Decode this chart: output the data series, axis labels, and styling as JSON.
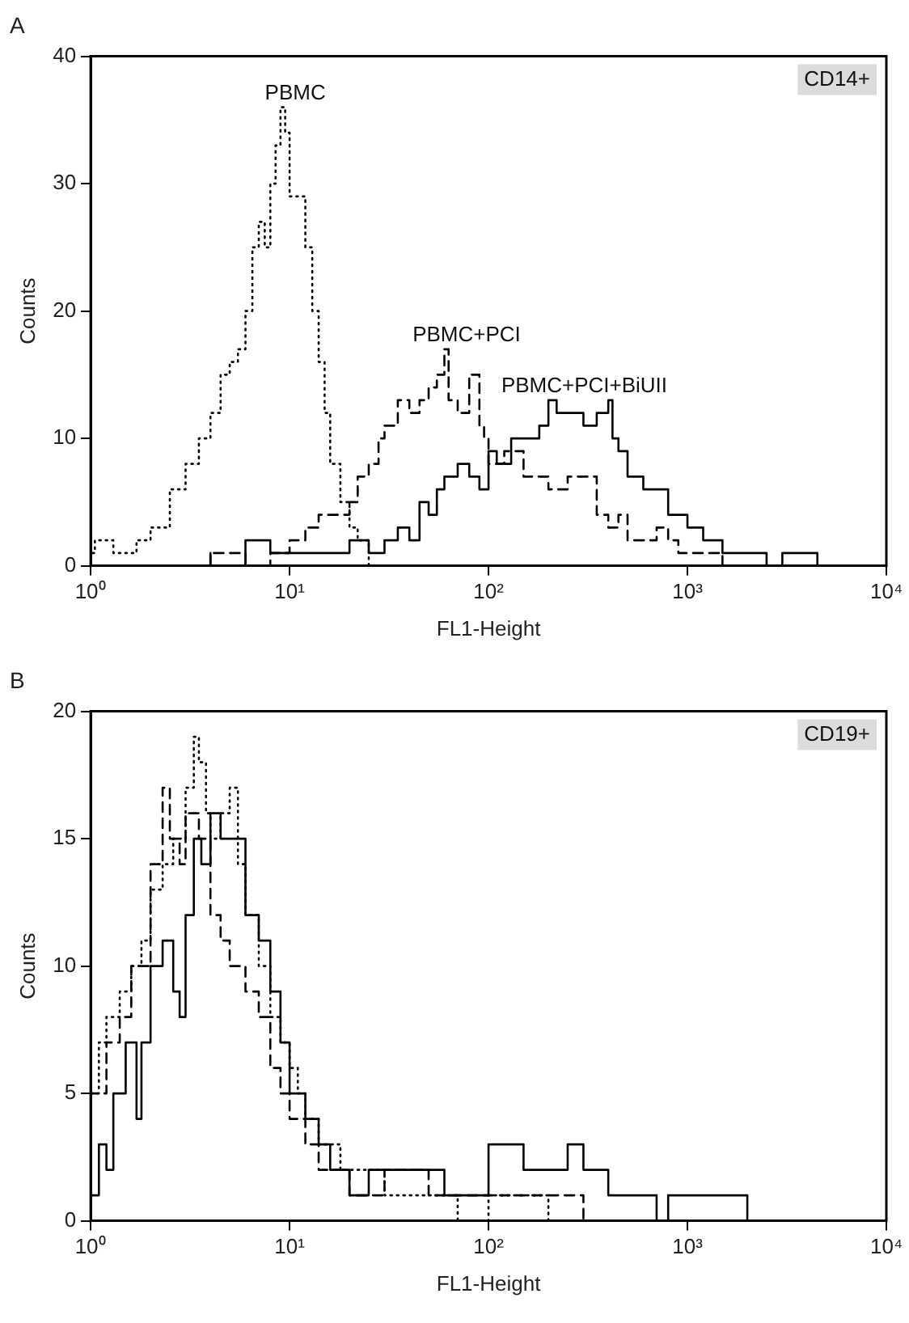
{
  "chart_data": [
    {
      "type": "step",
      "title": "A",
      "xlabel": "FL1-Height",
      "ylabel": "Counts",
      "annotations": [
        "CD14+"
      ],
      "log": "x",
      "grid": false,
      "legend": false,
      "marker": "none",
      "xlim": [
        1,
        10000
      ],
      "xticks": [
        {
          "value": 1,
          "label": "10⁰"
        },
        {
          "value": 10,
          "label": "10¹"
        },
        {
          "value": 100,
          "label": "10²"
        },
        {
          "value": 1000,
          "label": "10³"
        },
        {
          "value": 10000,
          "label": "10⁴"
        }
      ],
      "ylim": [
        0,
        40
      ],
      "yticks": [
        0,
        10,
        20,
        30,
        40
      ],
      "series": [
        {
          "name": "PBMC",
          "color": "#000000",
          "line_style": "dotted",
          "x": [
            1,
            1.05,
            1.3,
            1.5,
            1.7,
            2,
            2.5,
            3,
            3.5,
            4,
            4.5,
            5,
            5.5,
            6,
            6.5,
            7,
            7.5,
            8,
            8.5,
            9,
            9.5,
            10,
            11,
            12,
            13,
            14,
            15,
            16,
            18,
            20,
            22,
            25,
            28,
            100,
            1000,
            10000
          ],
          "values": [
            10,
            1,
            2,
            1,
            1,
            2,
            3,
            6,
            8,
            10,
            12,
            15,
            16,
            17,
            20,
            25,
            27,
            25,
            30,
            33,
            36,
            34,
            29,
            29,
            25,
            20,
            16,
            12,
            8,
            5,
            3,
            2,
            0,
            0,
            0,
            0
          ]
        },
        {
          "name": "PBMC+PCI",
          "color": "#000000",
          "line_style": "dashed",
          "x": [
            4,
            6,
            8,
            10,
            12,
            14,
            16,
            20,
            22,
            25,
            28,
            30,
            35,
            40,
            45,
            50,
            55,
            60,
            63,
            70,
            80,
            90,
            95,
            100,
            120,
            150,
            200,
            250,
            300,
            350,
            400,
            450,
            500,
            600,
            700,
            800,
            900,
            1000,
            1500,
            2000,
            10000
          ],
          "values": [
            0,
            1,
            0,
            1,
            2,
            3,
            4,
            4,
            5,
            7,
            8,
            10,
            11,
            13,
            12,
            13,
            14,
            15,
            17,
            13,
            12,
            15,
            11,
            10,
            8,
            9,
            7,
            6,
            7,
            7,
            4,
            3,
            4,
            2,
            2,
            3,
            2,
            1,
            1,
            0,
            0
          ]
        },
        {
          "name": "PBMC+PCI+BiUII",
          "color": "#000000",
          "line_style": "solid",
          "x": [
            4,
            6,
            8,
            10,
            15,
            20,
            25,
            30,
            35,
            40,
            45,
            50,
            55,
            60,
            70,
            80,
            90,
            100,
            110,
            130,
            150,
            180,
            200,
            220,
            250,
            300,
            350,
            400,
            420,
            450,
            500,
            600,
            700,
            800,
            900,
            1000,
            1200,
            1500,
            2000,
            2500,
            3000,
            4500,
            5000,
            10000
          ],
          "values": [
            1,
            0,
            2,
            1,
            1,
            1,
            2,
            1,
            2,
            3,
            2,
            5,
            4,
            6,
            7,
            8,
            7,
            6,
            9,
            8,
            10,
            10,
            11,
            13,
            12,
            12,
            11,
            12,
            13,
            10,
            9,
            7,
            6,
            6,
            4,
            4,
            3,
            2,
            1,
            1,
            0,
            1,
            0,
            0
          ]
        }
      ]
    },
    {
      "type": "step",
      "title": "B",
      "xlabel": "FL1-Height",
      "ylabel": "Counts",
      "annotations": [
        "CD19+"
      ],
      "log": "x",
      "grid": false,
      "legend": false,
      "marker": "none",
      "xlim": [
        1,
        10000
      ],
      "xticks": [
        {
          "value": 1,
          "label": "10⁰"
        },
        {
          "value": 10,
          "label": "10¹"
        },
        {
          "value": 100,
          "label": "10²"
        },
        {
          "value": 1000,
          "label": "10³"
        },
        {
          "value": 10000,
          "label": "10⁴"
        }
      ],
      "ylim": [
        0,
        20
      ],
      "yticks": [
        0,
        5,
        10,
        15,
        20
      ],
      "series": [
        {
          "color": "#000000",
          "line_style": "dotted",
          "x": [
            1,
            1.1,
            1.2,
            1.4,
            1.6,
            1.8,
            2,
            2.3,
            2.6,
            3,
            3.3,
            3.5,
            3.8,
            4,
            4.5,
            5,
            5.5,
            6,
            7,
            8,
            9,
            10,
            11,
            12,
            14,
            16,
            18,
            20,
            25,
            30,
            40,
            50,
            70,
            100,
            150,
            200,
            300,
            10000
          ],
          "values": [
            4,
            5,
            7,
            8,
            9,
            10,
            11,
            13,
            14,
            15,
            17,
            19,
            18,
            16,
            15,
            16,
            17,
            14,
            12,
            10,
            8,
            7,
            6,
            5,
            4,
            3,
            3,
            2,
            2,
            2,
            1,
            1,
            1,
            0,
            1,
            1,
            0,
            0
          ]
        },
        {
          "color": "#000000",
          "line_style": "dashed",
          "x": [
            1,
            1.2,
            1.4,
            1.6,
            2,
            2.3,
            2.5,
            2.8,
            3,
            3.5,
            4,
            4.5,
            5,
            6,
            7,
            8,
            9,
            10,
            12,
            14,
            16,
            20,
            30,
            50,
            70,
            100,
            150,
            200,
            300,
            400,
            10000
          ],
          "values": [
            3,
            5,
            7,
            8,
            10,
            14,
            17,
            15,
            14,
            16,
            15,
            12,
            11,
            10,
            9,
            8,
            6,
            5,
            4,
            3,
            2,
            2,
            1,
            2,
            1,
            1,
            1,
            1,
            1,
            0,
            0
          ]
        },
        {
          "color": "#000000",
          "line_style": "solid",
          "x": [
            1,
            1.1,
            1.2,
            1.3,
            1.5,
            1.7,
            1.8,
            2,
            2.3,
            2.6,
            2.8,
            3,
            3.3,
            3.6,
            4,
            4.5,
            5,
            6,
            7,
            8,
            9,
            10,
            12,
            14,
            16,
            20,
            25,
            40,
            60,
            80,
            100,
            150,
            200,
            250,
            300,
            350,
            400,
            500,
            600,
            700,
            800,
            2000,
            2100,
            10000
          ],
          "values": [
            2,
            1,
            3,
            2,
            5,
            7,
            4,
            7,
            10,
            11,
            9,
            8,
            12,
            15,
            14,
            16,
            15,
            15,
            12,
            11,
            9,
            7,
            5,
            4,
            3,
            2,
            1,
            2,
            2,
            1,
            1,
            3,
            2,
            2,
            3,
            2,
            2,
            1,
            1,
            1,
            0,
            1,
            0,
            0
          ]
        }
      ]
    }
  ]
}
